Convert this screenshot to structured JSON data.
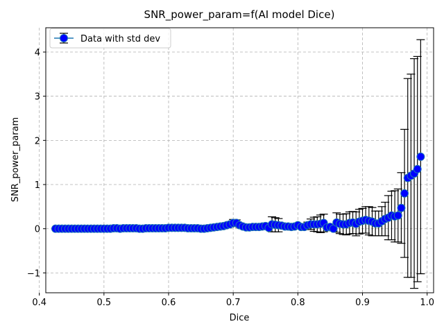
{
  "chart_data": {
    "type": "scatter",
    "title": "SNR_power_param=f(AI model Dice)",
    "xlabel": "Dice",
    "ylabel": "SNR_power_param",
    "xlim": [
      0.41,
      1.01
    ],
    "ylim": [
      -1.45,
      4.55
    ],
    "xticks": [
      0.4,
      0.5,
      0.6,
      0.7,
      0.8,
      0.9,
      1.0
    ],
    "xtick_labels": [
      "0.4",
      "0.5",
      "0.6",
      "0.7",
      "0.8",
      "0.9",
      "1.0"
    ],
    "yticks": [
      -1,
      0,
      1,
      2,
      3,
      4
    ],
    "ytick_labels": [
      "−1",
      "0",
      "1",
      "2",
      "3",
      "4"
    ],
    "grid": true,
    "legend": {
      "position": "top-left",
      "entries": [
        "Data with std dev"
      ]
    },
    "series": [
      {
        "name": "Data with std dev",
        "marker_color": "#0000ff",
        "line_color": "#1f77b4",
        "errorbar_color": "#000000",
        "points": [
          {
            "x": 0.425,
            "y": 0.0,
            "err": 0.0
          },
          {
            "x": 0.43,
            "y": 0.0,
            "err": 0.0
          },
          {
            "x": 0.435,
            "y": 0.0,
            "err": 0.0
          },
          {
            "x": 0.44,
            "y": 0.0,
            "err": 0.0
          },
          {
            "x": 0.445,
            "y": 0.0,
            "err": 0.0
          },
          {
            "x": 0.45,
            "y": 0.0,
            "err": 0.0
          },
          {
            "x": 0.455,
            "y": 0.0,
            "err": 0.0
          },
          {
            "x": 0.46,
            "y": 0.0,
            "err": 0.0
          },
          {
            "x": 0.465,
            "y": 0.0,
            "err": 0.0
          },
          {
            "x": 0.47,
            "y": 0.0,
            "err": 0.0
          },
          {
            "x": 0.475,
            "y": 0.0,
            "err": 0.0
          },
          {
            "x": 0.48,
            "y": 0.0,
            "err": 0.0
          },
          {
            "x": 0.485,
            "y": 0.0,
            "err": 0.0
          },
          {
            "x": 0.49,
            "y": 0.0,
            "err": 0.0
          },
          {
            "x": 0.495,
            "y": 0.0,
            "err": 0.0
          },
          {
            "x": 0.5,
            "y": 0.0,
            "err": 0.0
          },
          {
            "x": 0.505,
            "y": 0.0,
            "err": 0.0
          },
          {
            "x": 0.51,
            "y": 0.0,
            "err": 0.0
          },
          {
            "x": 0.515,
            "y": 0.01,
            "err": 0.0
          },
          {
            "x": 0.52,
            "y": 0.01,
            "err": 0.0
          },
          {
            "x": 0.525,
            "y": 0.0,
            "err": 0.0
          },
          {
            "x": 0.53,
            "y": 0.01,
            "err": 0.0
          },
          {
            "x": 0.535,
            "y": 0.01,
            "err": 0.0
          },
          {
            "x": 0.54,
            "y": 0.01,
            "err": 0.0
          },
          {
            "x": 0.545,
            "y": 0.01,
            "err": 0.0
          },
          {
            "x": 0.55,
            "y": 0.01,
            "err": 0.0
          },
          {
            "x": 0.555,
            "y": 0.0,
            "err": 0.0
          },
          {
            "x": 0.56,
            "y": 0.0,
            "err": 0.0
          },
          {
            "x": 0.565,
            "y": 0.01,
            "err": 0.0
          },
          {
            "x": 0.57,
            "y": 0.01,
            "err": 0.0
          },
          {
            "x": 0.575,
            "y": 0.01,
            "err": 0.0
          },
          {
            "x": 0.58,
            "y": 0.01,
            "err": 0.0
          },
          {
            "x": 0.585,
            "y": 0.01,
            "err": 0.0
          },
          {
            "x": 0.59,
            "y": 0.01,
            "err": 0.0
          },
          {
            "x": 0.595,
            "y": 0.01,
            "err": 0.0
          },
          {
            "x": 0.6,
            "y": 0.02,
            "err": 0.0
          },
          {
            "x": 0.605,
            "y": 0.02,
            "err": 0.0
          },
          {
            "x": 0.61,
            "y": 0.02,
            "err": 0.0
          },
          {
            "x": 0.615,
            "y": 0.02,
            "err": 0.0
          },
          {
            "x": 0.62,
            "y": 0.02,
            "err": 0.0
          },
          {
            "x": 0.625,
            "y": 0.02,
            "err": 0.0
          },
          {
            "x": 0.63,
            "y": 0.01,
            "err": 0.0
          },
          {
            "x": 0.635,
            "y": 0.01,
            "err": 0.0
          },
          {
            "x": 0.64,
            "y": 0.01,
            "err": 0.0
          },
          {
            "x": 0.645,
            "y": 0.01,
            "err": 0.0
          },
          {
            "x": 0.65,
            "y": 0.0,
            "err": 0.0
          },
          {
            "x": 0.655,
            "y": 0.0,
            "err": 0.0
          },
          {
            "x": 0.66,
            "y": 0.01,
            "err": 0.0
          },
          {
            "x": 0.665,
            "y": 0.02,
            "err": 0.0
          },
          {
            "x": 0.67,
            "y": 0.03,
            "err": 0.0
          },
          {
            "x": 0.675,
            "y": 0.04,
            "err": 0.0
          },
          {
            "x": 0.68,
            "y": 0.05,
            "err": 0.02
          },
          {
            "x": 0.685,
            "y": 0.06,
            "err": 0.03
          },
          {
            "x": 0.69,
            "y": 0.08,
            "err": 0.05
          },
          {
            "x": 0.695,
            "y": 0.1,
            "err": 0.06
          },
          {
            "x": 0.7,
            "y": 0.13,
            "err": 0.08
          },
          {
            "x": 0.705,
            "y": 0.13,
            "err": 0.07
          },
          {
            "x": 0.71,
            "y": 0.08,
            "err": 0.05
          },
          {
            "x": 0.715,
            "y": 0.05,
            "err": 0.03
          },
          {
            "x": 0.72,
            "y": 0.03,
            "err": 0.02
          },
          {
            "x": 0.725,
            "y": 0.03,
            "err": 0.02
          },
          {
            "x": 0.73,
            "y": 0.04,
            "err": 0.02
          },
          {
            "x": 0.735,
            "y": 0.04,
            "err": 0.02
          },
          {
            "x": 0.74,
            "y": 0.04,
            "err": 0.02
          },
          {
            "x": 0.745,
            "y": 0.05,
            "err": 0.02
          },
          {
            "x": 0.75,
            "y": 0.06,
            "err": 0.03
          },
          {
            "x": 0.755,
            "y": 0.02,
            "err": 0.02
          },
          {
            "x": 0.76,
            "y": 0.1,
            "err": 0.17
          },
          {
            "x": 0.765,
            "y": 0.09,
            "err": 0.16
          },
          {
            "x": 0.77,
            "y": 0.08,
            "err": 0.15
          },
          {
            "x": 0.775,
            "y": 0.07,
            "err": 0.05
          },
          {
            "x": 0.78,
            "y": 0.05,
            "err": 0.04
          },
          {
            "x": 0.785,
            "y": 0.05,
            "err": 0.03
          },
          {
            "x": 0.79,
            "y": 0.04,
            "err": 0.02
          },
          {
            "x": 0.795,
            "y": 0.05,
            "err": 0.03
          },
          {
            "x": 0.8,
            "y": 0.08,
            "err": 0.04
          },
          {
            "x": 0.805,
            "y": 0.04,
            "err": 0.02
          },
          {
            "x": 0.81,
            "y": 0.04,
            "err": 0.03
          },
          {
            "x": 0.815,
            "y": 0.08,
            "err": 0.07
          },
          {
            "x": 0.82,
            "y": 0.1,
            "err": 0.12
          },
          {
            "x": 0.825,
            "y": 0.1,
            "err": 0.16
          },
          {
            "x": 0.83,
            "y": 0.1,
            "err": 0.17
          },
          {
            "x": 0.835,
            "y": 0.11,
            "err": 0.2
          },
          {
            "x": 0.84,
            "y": 0.13,
            "err": 0.2
          },
          {
            "x": 0.845,
            "y": 0.03,
            "err": 0.03
          },
          {
            "x": 0.85,
            "y": 0.04,
            "err": 0.02
          },
          {
            "x": 0.855,
            "y": 0.0,
            "err": 0.05
          },
          {
            "x": 0.86,
            "y": 0.14,
            "err": 0.22
          },
          {
            "x": 0.865,
            "y": 0.11,
            "err": 0.22
          },
          {
            "x": 0.87,
            "y": 0.1,
            "err": 0.23
          },
          {
            "x": 0.875,
            "y": 0.1,
            "err": 0.24
          },
          {
            "x": 0.88,
            "y": 0.13,
            "err": 0.25
          },
          {
            "x": 0.885,
            "y": 0.14,
            "err": 0.25
          },
          {
            "x": 0.89,
            "y": 0.11,
            "err": 0.27
          },
          {
            "x": 0.895,
            "y": 0.16,
            "err": 0.28
          },
          {
            "x": 0.9,
            "y": 0.18,
            "err": 0.28
          },
          {
            "x": 0.905,
            "y": 0.2,
            "err": 0.3
          },
          {
            "x": 0.91,
            "y": 0.18,
            "err": 0.32
          },
          {
            "x": 0.915,
            "y": 0.16,
            "err": 0.32
          },
          {
            "x": 0.92,
            "y": 0.12,
            "err": 0.28
          },
          {
            "x": 0.925,
            "y": 0.12,
            "err": 0.28
          },
          {
            "x": 0.93,
            "y": 0.17,
            "err": 0.33
          },
          {
            "x": 0.935,
            "y": 0.22,
            "err": 0.38
          },
          {
            "x": 0.94,
            "y": 0.25,
            "err": 0.5
          },
          {
            "x": 0.945,
            "y": 0.3,
            "err": 0.55
          },
          {
            "x": 0.95,
            "y": 0.28,
            "err": 0.58
          },
          {
            "x": 0.955,
            "y": 0.3,
            "err": 0.6
          },
          {
            "x": 0.96,
            "y": 0.47,
            "err": 0.8
          },
          {
            "x": 0.965,
            "y": 0.8,
            "err": 1.45
          },
          {
            "x": 0.97,
            "y": 1.15,
            "err": 2.25
          },
          {
            "x": 0.975,
            "y": 1.2,
            "err": 2.3
          },
          {
            "x": 0.98,
            "y": 1.25,
            "err": 2.6
          },
          {
            "x": 0.985,
            "y": 1.35,
            "err": 2.55
          },
          {
            "x": 0.99,
            "y": 1.63,
            "err": 2.65
          }
        ]
      }
    ]
  }
}
